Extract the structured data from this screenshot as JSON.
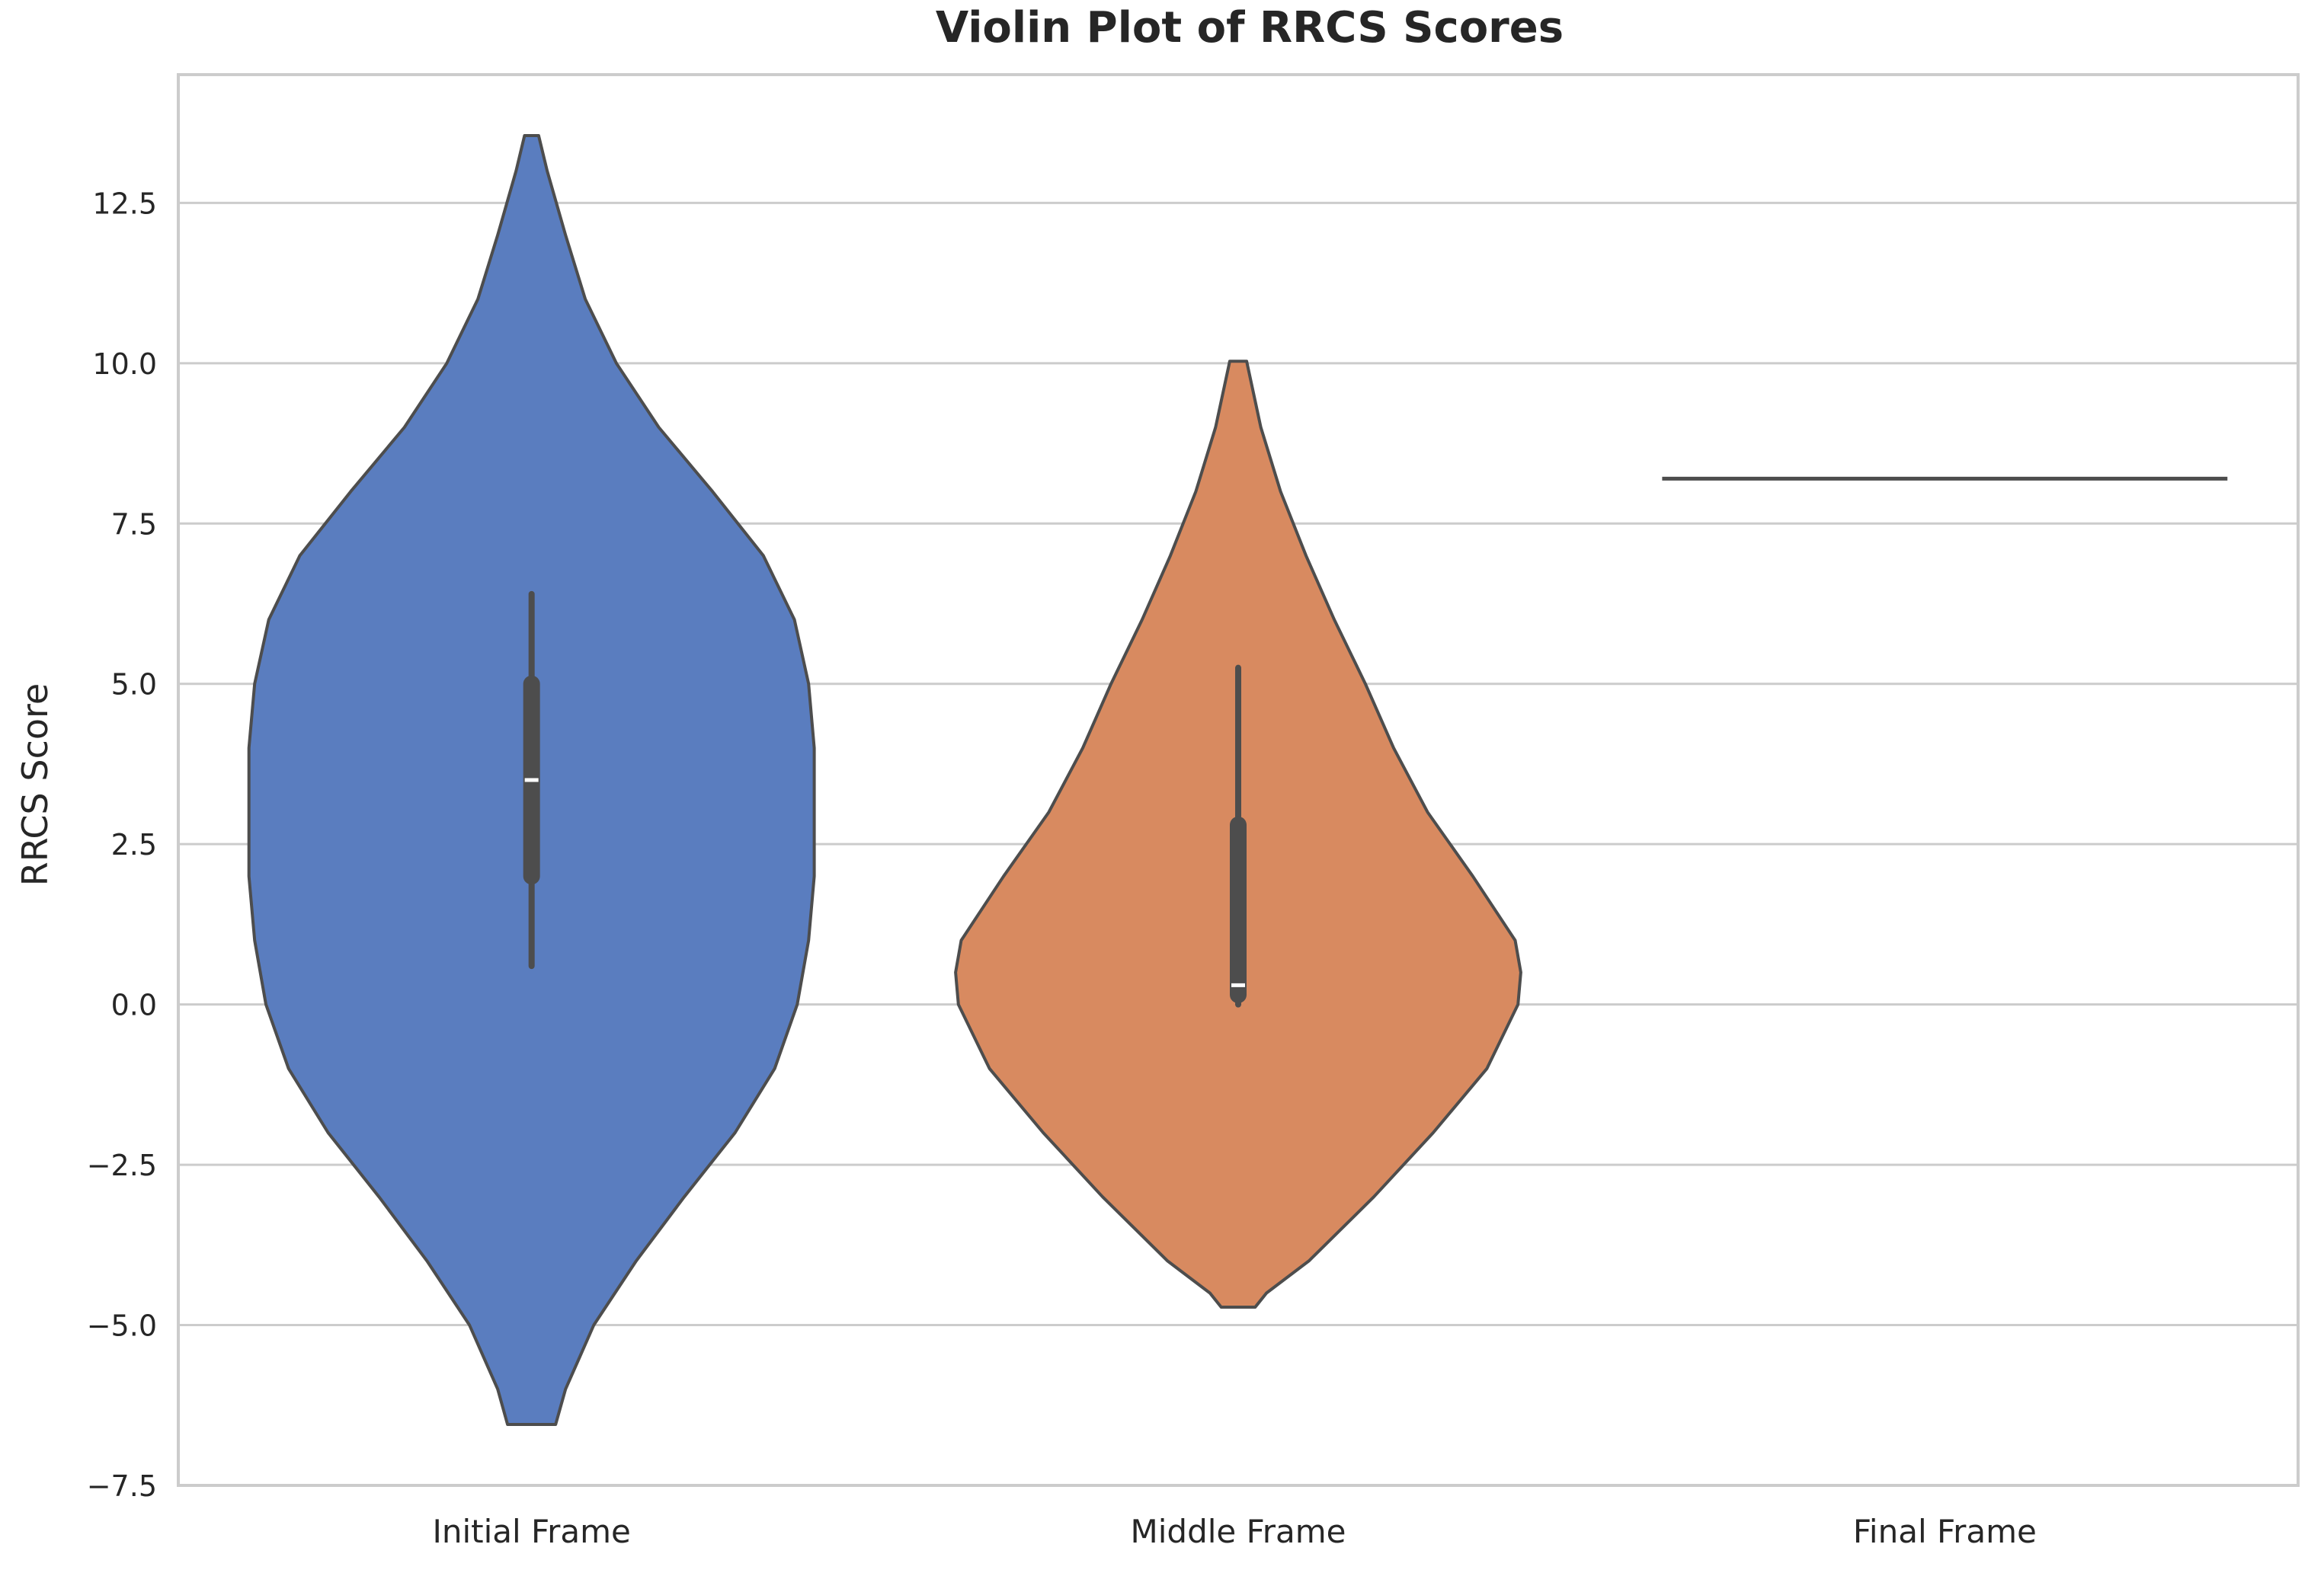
{
  "chart_data": {
    "type": "violin",
    "title": "Violin Plot of RRCS Scores",
    "xlabel": "",
    "ylabel": "RRCS Score",
    "ylim": [
      -7.5,
      14.5
    ],
    "y_ticks": [
      -7.5,
      -5.0,
      -2.5,
      0.0,
      2.5,
      5.0,
      7.5,
      10.0,
      12.5
    ],
    "y_tick_labels": [
      "−7.5",
      "−5.0",
      "−2.5",
      "0.0",
      "2.5",
      "5.0",
      "7.5",
      "10.0",
      "12.5"
    ],
    "grid": "horizontal",
    "categories": [
      "Initial Frame",
      "Middle Frame",
      "Final Frame"
    ],
    "violins": [
      {
        "category": "Initial Frame",
        "color": "#5a7dbf",
        "min": -6.55,
        "max": 13.55,
        "q1": 2.0,
        "median": 3.5,
        "q3": 5.0,
        "whisker_low": 0.6,
        "whisker_high": 6.4,
        "density": [
          [
            -6.55,
            0.085
          ],
          [
            -6.0,
            0.12
          ],
          [
            -5.0,
            0.22
          ],
          [
            -4.0,
            0.37
          ],
          [
            -3.0,
            0.54
          ],
          [
            -2.0,
            0.72
          ],
          [
            -1.0,
            0.86
          ],
          [
            0.0,
            0.94
          ],
          [
            1.0,
            0.98
          ],
          [
            2.0,
            1.0
          ],
          [
            3.0,
            1.0
          ],
          [
            3.5,
            1.0
          ],
          [
            4.0,
            1.0
          ],
          [
            5.0,
            0.98
          ],
          [
            6.0,
            0.93
          ],
          [
            7.0,
            0.82
          ],
          [
            8.0,
            0.64
          ],
          [
            9.0,
            0.45
          ],
          [
            10.0,
            0.3
          ],
          [
            11.0,
            0.19
          ],
          [
            12.0,
            0.12
          ],
          [
            13.0,
            0.055
          ],
          [
            13.55,
            0.025
          ]
        ]
      },
      {
        "category": "Middle Frame",
        "color": "#d88a60",
        "min": -4.72,
        "max": 10.03,
        "q1": 0.15,
        "median": 0.3,
        "q3": 2.8,
        "whisker_low": 0.0,
        "whisker_high": 5.25,
        "density": [
          [
            -4.72,
            0.06
          ],
          [
            -4.5,
            0.1
          ],
          [
            -4.0,
            0.25
          ],
          [
            -3.0,
            0.48
          ],
          [
            -2.0,
            0.69
          ],
          [
            -1.0,
            0.88
          ],
          [
            0.0,
            0.99
          ],
          [
            0.5,
            1.0
          ],
          [
            1.0,
            0.98
          ],
          [
            2.0,
            0.83
          ],
          [
            3.0,
            0.67
          ],
          [
            4.0,
            0.55
          ],
          [
            5.0,
            0.45
          ],
          [
            6.0,
            0.34
          ],
          [
            7.0,
            0.24
          ],
          [
            8.0,
            0.15
          ],
          [
            9.0,
            0.08
          ],
          [
            10.03,
            0.03
          ]
        ]
      },
      {
        "category": "Final Frame",
        "color": "#55a868",
        "single_value": 8.2
      }
    ]
  }
}
